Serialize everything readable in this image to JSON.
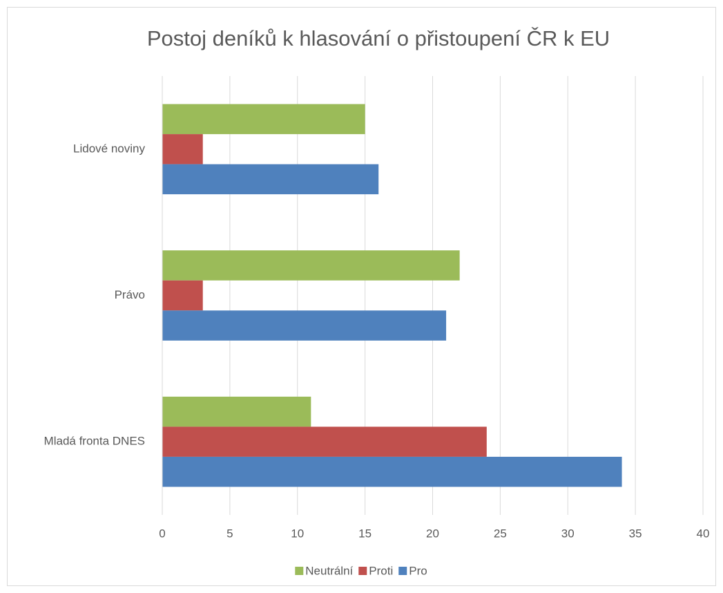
{
  "chart_data": {
    "type": "hbar",
    "title": "Postoj deníků k hlasování o přistoupení ČR k EU",
    "categories": [
      "Mladá fronta DNES",
      "Právo",
      "Lidové noviny"
    ],
    "series": [
      {
        "name": "Neutrální",
        "color": "#9bbb59",
        "values": [
          11,
          22,
          15
        ]
      },
      {
        "name": "Proti",
        "color": "#c0504d",
        "values": [
          24,
          3,
          3
        ]
      },
      {
        "name": "Pro",
        "color": "#4f81bd",
        "values": [
          34,
          21,
          16
        ]
      }
    ],
    "xlim": [
      0,
      40
    ],
    "xticks": [
      0,
      5,
      10,
      15,
      20,
      25,
      30,
      35,
      40
    ],
    "grid": true,
    "legend": "bottom"
  }
}
